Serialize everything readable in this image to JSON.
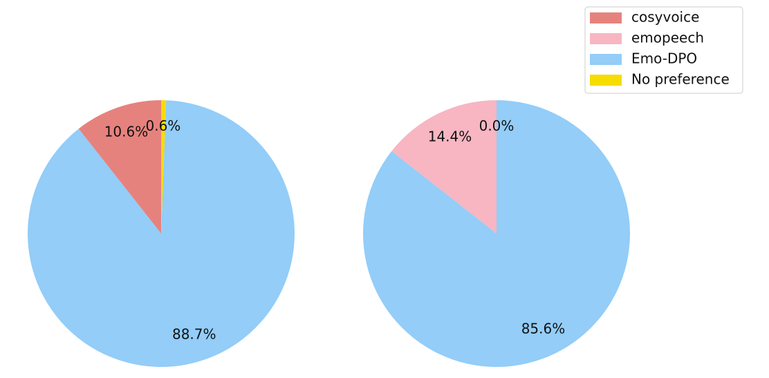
{
  "chart_data": [
    {
      "type": "pie",
      "categories": [
        "cosyvoice",
        "Emo-DPO",
        "No preference"
      ],
      "values": [
        10.6,
        88.7,
        0.6
      ],
      "value_labels": [
        "10.6%",
        "88.7%",
        "0.6%"
      ],
      "colors": [
        "#e6827e",
        "#93cdf8",
        "#f7dc00"
      ],
      "legend": "upper right"
    },
    {
      "type": "pie",
      "categories": [
        "emopeech",
        "Emo-DPO",
        "No preference"
      ],
      "values": [
        14.4,
        85.6,
        0.0
      ],
      "value_labels": [
        "14.4%",
        "85.6%",
        "0.0%"
      ],
      "colors": [
        "#f7b6c2",
        "#93cdf8",
        "#f7dc00"
      ]
    }
  ]
}
